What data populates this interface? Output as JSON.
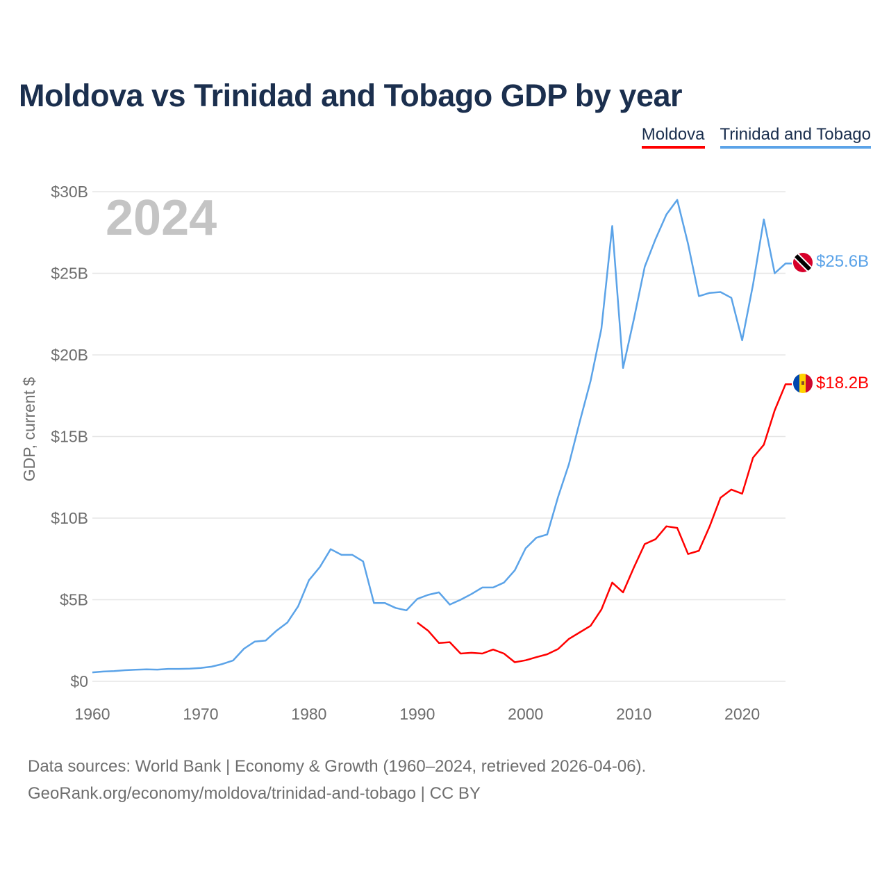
{
  "chart_data": {
    "type": "line",
    "title": "Moldova vs Trinidad and Tobago GDP by year",
    "xlabel": "",
    "ylabel": "GDP, current $",
    "xlim": [
      1960,
      2024
    ],
    "ylim": [
      0,
      30
    ],
    "grid": true,
    "legend_position": "top-right",
    "year_watermark": "2024",
    "x_ticks": [
      "1960",
      "1970",
      "1980",
      "1990",
      "2000",
      "2010",
      "2020"
    ],
    "y_ticks": [
      "$0",
      "$5B",
      "$10B",
      "$15B",
      "$20B",
      "$25B",
      "$30B"
    ],
    "series": [
      {
        "name": "Moldova",
        "color": "#ff0000",
        "start_year": 1990,
        "end_label": "$18.2B",
        "values": [
          3.6,
          3.1,
          2.35,
          2.4,
          1.7,
          1.75,
          1.7,
          1.95,
          1.7,
          1.17,
          1.29,
          1.48,
          1.66,
          1.98,
          2.6,
          3.0,
          3.4,
          4.4,
          6.05,
          5.45,
          6.98,
          8.41,
          8.71,
          9.5,
          9.4,
          7.8,
          8.0,
          9.5,
          11.25,
          11.75,
          11.5,
          13.7,
          14.5,
          16.6,
          18.2
        ]
      },
      {
        "name": "Trinidad and Tobago",
        "color": "#5ba3e8",
        "start_year": 1960,
        "end_label": "$25.6B",
        "values": [
          0.55,
          0.6,
          0.63,
          0.68,
          0.71,
          0.73,
          0.72,
          0.76,
          0.76,
          0.78,
          0.82,
          0.9,
          1.06,
          1.28,
          2.0,
          2.44,
          2.5,
          3.1,
          3.6,
          4.6,
          6.2,
          7.0,
          8.1,
          7.75,
          7.75,
          7.35,
          4.8,
          4.8,
          4.5,
          4.35,
          5.05,
          5.3,
          5.45,
          4.7,
          5.0,
          5.35,
          5.75,
          5.75,
          6.05,
          6.8,
          8.15,
          8.8,
          9.0,
          11.3,
          13.3,
          15.9,
          18.4,
          21.6,
          27.9,
          19.2,
          22.2,
          25.4,
          27.1,
          28.6,
          29.5,
          26.8,
          23.6,
          23.8,
          23.85,
          23.5,
          20.9,
          24.3,
          28.3,
          25.0,
          25.6
        ]
      }
    ]
  },
  "footer": {
    "line1": "Data sources: World Bank | Economy & Growth (1960–2024, retrieved 2026-04-06).",
    "line2": "GeoRank.org/economy/moldova/trinidad-and-tobago | CC BY"
  }
}
